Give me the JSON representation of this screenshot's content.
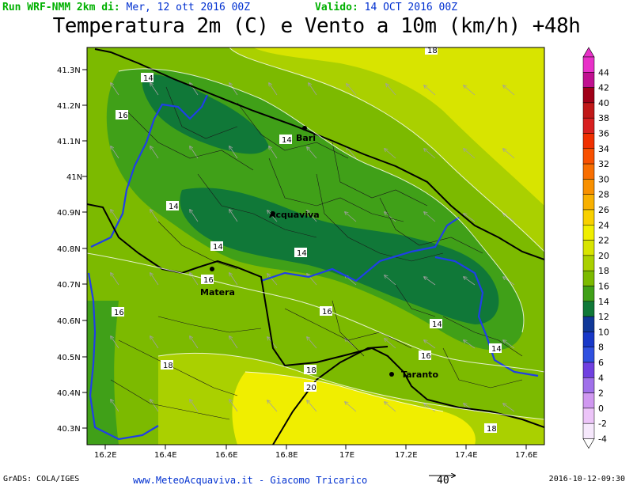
{
  "header": {
    "run_label": "Run WRF-NMM 2km di:",
    "run_date": "Mer, 12 ott 2016 00Z",
    "valid_label": "Valido:",
    "valid_date": "14 OCT 2016 00Z",
    "title": "Temperatura 2m (C) e Vento a 10m (km/h) +48h"
  },
  "axes": {
    "lat_ticks": [
      "41.3N",
      "41.2N",
      "41.1N",
      "41N",
      "40.9N",
      "40.8N",
      "40.7N",
      "40.6N",
      "40.5N",
      "40.4N",
      "40.3N"
    ],
    "lon_ticks": [
      "16.2E",
      "16.4E",
      "16.6E",
      "16.8E",
      "17E",
      "17.2E",
      "17.4E",
      "17.6E"
    ]
  },
  "cities": [
    {
      "name": "Bari"
    },
    {
      "name": "Acquaviva"
    },
    {
      "name": "Matera"
    },
    {
      "name": "Taranto"
    }
  ],
  "contour_labels": [
    "18",
    "14",
    "16",
    "14",
    "14",
    "14",
    "14",
    "16",
    "16",
    "16",
    "18",
    "18",
    "20",
    "14",
    "14",
    "16",
    "18"
  ],
  "colorbar": {
    "values": [
      "44",
      "42",
      "40",
      "38",
      "36",
      "34",
      "32",
      "30",
      "28",
      "26",
      "24",
      "22",
      "20",
      "18",
      "16",
      "14",
      "12",
      "10",
      "8",
      "6",
      "4",
      "2",
      "0",
      "-2",
      "-4"
    ],
    "colors": [
      "#e830c8",
      "#c01090",
      "#a00018",
      "#c01818",
      "#d82020",
      "#f03000",
      "#f85000",
      "#f86e00",
      "#f89000",
      "#f8b000",
      "#f8d000",
      "#f0ee00",
      "#d8e400",
      "#aad000",
      "#7cba00",
      "#40a018",
      "#107838",
      "#103898",
      "#1838c8",
      "#3050e0",
      "#7040e0",
      "#a070ea",
      "#d098f0",
      "#ecc4f8",
      "#f6e8fc"
    ]
  },
  "reference_vector": {
    "value": "40"
  },
  "footer": {
    "credit": "GrADS: COLA/IGES",
    "site": "www.MeteoAcquaviva.it  -  Giacomo Tricarico",
    "timestamp": "2016-10-12-09:30"
  }
}
